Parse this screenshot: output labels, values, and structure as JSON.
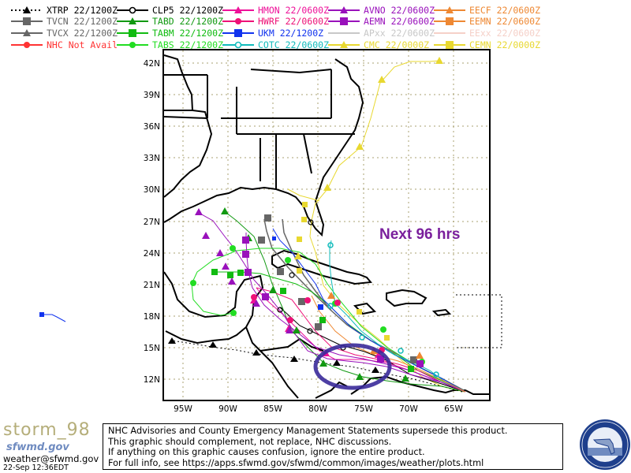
{
  "legend": {
    "items": [
      {
        "id": "xtrp",
        "label": "XTRP 22/1200Z",
        "color": "#000000",
        "marker": "triangle",
        "dash": "2,3",
        "col": 0,
        "row": 0
      },
      {
        "id": "tvcn",
        "label": "TVCN 22/1200Z",
        "color": "#666666",
        "marker": "square",
        "col": 0,
        "row": 1
      },
      {
        "id": "tvcx",
        "label": "TVCX 22/1200Z",
        "color": "#666666",
        "marker": "triangle",
        "col": 0,
        "row": 2
      },
      {
        "id": "nhc",
        "label": "NHC Not Avail",
        "color": "#ff3333",
        "marker": "circle",
        "col": 0,
        "row": 3
      },
      {
        "id": "clp5",
        "label": "CLP5 22/1200Z",
        "color": "#000000",
        "marker": "hollow-circle",
        "col": 1,
        "row": 0
      },
      {
        "id": "tabd",
        "label": "TABD 22/1200Z",
        "color": "#119911",
        "marker": "triangle",
        "col": 1,
        "row": 1
      },
      {
        "id": "tabm",
        "label": "TABM 22/1200Z",
        "color": "#11bb11",
        "marker": "square",
        "col": 1,
        "row": 2
      },
      {
        "id": "tabs",
        "label": "TABS 22/1200Z",
        "color": "#22dd22",
        "marker": "circle",
        "col": 1,
        "row": 3
      },
      {
        "id": "hmon",
        "label": "HMON 22/0600Z",
        "color": "#ee1199",
        "marker": "triangle",
        "col": 2,
        "row": 0
      },
      {
        "id": "hwrf",
        "label": "HWRF 22/0600Z",
        "color": "#ee1177",
        "marker": "circle",
        "col": 2,
        "row": 1
      },
      {
        "id": "ukm",
        "label": "UKM 22/1200Z",
        "color": "#1133ee",
        "marker": "square",
        "col": 2,
        "row": 2
      },
      {
        "id": "cotc",
        "label": "COTC 22/0600Z",
        "color": "#11bbbb",
        "marker": "hollow-circle",
        "col": 2,
        "row": 3
      },
      {
        "id": "avno",
        "label": "AVNO 22/0600Z",
        "color": "#9911bb",
        "marker": "triangle",
        "col": 3,
        "row": 0
      },
      {
        "id": "aemn",
        "label": "AEMN 22/0600Z",
        "color": "#9911bb",
        "marker": "square",
        "col": 3,
        "row": 1
      },
      {
        "id": "apxx",
        "label": "APxx 22/0600Z",
        "color": "#c8c8c8",
        "marker": "none",
        "col": 3,
        "row": 2
      },
      {
        "id": "cmc",
        "label": "CMC 22/0000Z",
        "color": "#e8d830",
        "marker": "triangle",
        "col": 3,
        "row": 3
      },
      {
        "id": "eecf",
        "label": "EECF 22/0600Z",
        "color": "#ee8833",
        "marker": "triangle",
        "col": 4,
        "row": 0
      },
      {
        "id": "eemn",
        "label": "EEMN 22/0600Z",
        "color": "#ee8833",
        "marker": "square",
        "col": 4,
        "row": 1
      },
      {
        "id": "eexx",
        "label": "EExx 22/0600Z",
        "color": "#f5d0c8",
        "marker": "none",
        "col": 4,
        "row": 2
      },
      {
        "id": "cemn",
        "label": "CEMN 22/0000Z",
        "color": "#e8d830",
        "marker": "square",
        "col": 4,
        "row": 3
      }
    ]
  },
  "map": {
    "lat_labels": [
      "42N",
      "39N",
      "36N",
      "33N",
      "30N",
      "27N",
      "24N",
      "21N",
      "18N",
      "15N",
      "12N"
    ],
    "lon_labels": [
      "95W",
      "90W",
      "85W",
      "80W",
      "75W",
      "70W",
      "65W"
    ],
    "annotation": "Next 96 hrs",
    "highlight_color": "#3a2a9a",
    "annotation_color": "#7a1f9c"
  },
  "footer": {
    "storm_id": "storm_98",
    "site": "sfwmd.gov",
    "email": "weather@sfwmd.gov",
    "timestamp": "22-Sep 12:36EDT",
    "disclaimer": [
      "NHC Advisories and County Emergency Management Statements supersede this product.",
      "This graphic should complement, not replace, NHC discussions.",
      "If anything on this graphic causes confusion, ignore the entire product.",
      "For full info, see  https://apps.sfwmd.gov/sfwmd/common/images/weather/plots.html"
    ],
    "seal_text": "SOUTH FLORIDA WATER MANAGEMENT DISTRICT"
  }
}
